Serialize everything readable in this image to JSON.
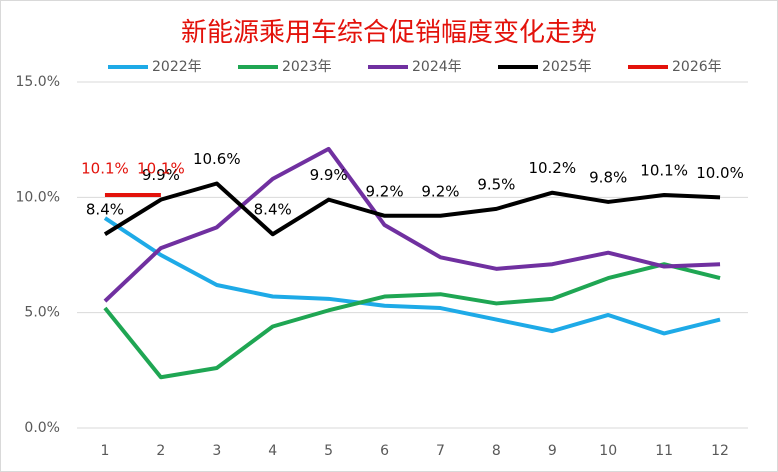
{
  "chart_data": {
    "type": "line",
    "title": "新能源乘用车综合促销幅度变化走势",
    "categories": [
      "1",
      "2",
      "3",
      "4",
      "5",
      "6",
      "7",
      "8",
      "9",
      "10",
      "11",
      "12"
    ],
    "ylim": [
      0,
      15
    ],
    "yticks": [
      {
        "value": 0,
        "label": "0.0%"
      },
      {
        "value": 5,
        "label": "5.0%"
      },
      {
        "value": 10,
        "label": "10.0%"
      },
      {
        "value": 15,
        "label": "15.0%"
      }
    ],
    "grid": true,
    "legend": "top",
    "series": [
      {
        "name": "2022年",
        "color": "#1eaae7",
        "values": [
          9.1,
          7.5,
          6.2,
          5.7,
          5.6,
          5.3,
          5.2,
          4.7,
          4.2,
          4.9,
          4.1,
          4.7
        ]
      },
      {
        "name": "2023年",
        "color": "#1fa653",
        "values": [
          5.2,
          2.2,
          2.6,
          4.4,
          5.1,
          5.7,
          5.8,
          5.4,
          5.6,
          6.5,
          7.1,
          6.5
        ]
      },
      {
        "name": "2024年",
        "color": "#7030a0",
        "values": [
          5.5,
          7.8,
          8.7,
          10.8,
          12.1,
          8.8,
          7.4,
          6.9,
          7.1,
          7.6,
          7.0,
          7.1
        ]
      },
      {
        "name": "2025年",
        "color": "#000000",
        "values": [
          8.4,
          9.9,
          10.6,
          8.4,
          9.9,
          9.2,
          9.2,
          9.5,
          10.2,
          9.8,
          10.1,
          10.0
        ],
        "value_labels": [
          "8.4%",
          "9.9%",
          "10.6%",
          "8.4%",
          "9.9%",
          "9.2%",
          "9.2%",
          "9.5%",
          "10.2%",
          "9.8%",
          "10.1%",
          "10.0%"
        ]
      },
      {
        "name": "2026年",
        "color": "#e3120b",
        "values": [
          10.1,
          10.1,
          null,
          null,
          null,
          null,
          null,
          null,
          null,
          null,
          null,
          null
        ],
        "value_labels": [
          "10.1%",
          "10.1%",
          null,
          null,
          null,
          null,
          null,
          null,
          null,
          null,
          null,
          null
        ]
      }
    ]
  }
}
